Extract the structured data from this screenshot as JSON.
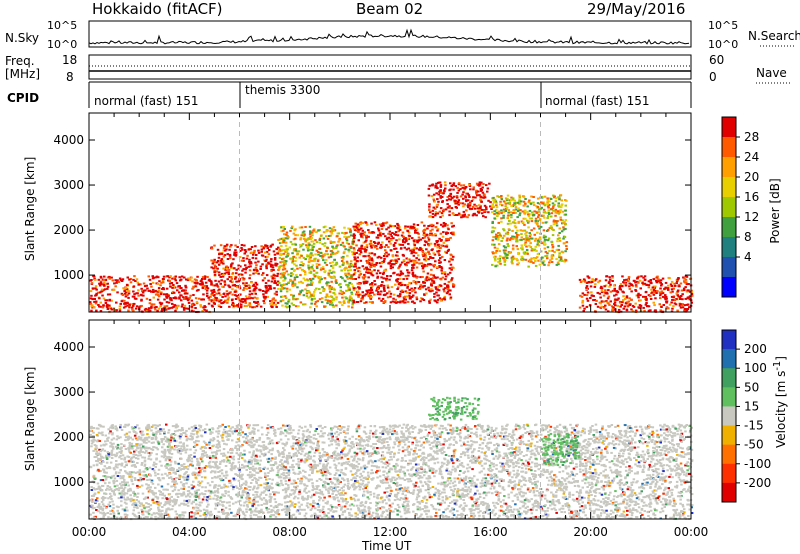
{
  "header": {
    "radar": "Hokkaido (fitACF)",
    "beam": "Beam 02",
    "date": "29/May/2016"
  },
  "noise_panel": {
    "left_label": "N.Sky",
    "left_ticks": [
      "10^5",
      "10^0"
    ],
    "right_label": "N.Search",
    "right_ticks": [
      "10^5",
      "10^0"
    ]
  },
  "freq_panel": {
    "left_label_1": "Freq.",
    "left_label_2": "[MHz]",
    "left_ticks": [
      "18",
      "8"
    ],
    "right_label": "Nave",
    "right_ticks": [
      "60",
      "0"
    ]
  },
  "cpid_panel": {
    "label": "CPID",
    "modes": [
      "normal (fast) 151",
      "themis 3300",
      "normal (fast) 151"
    ]
  },
  "chart_data": [
    {
      "type": "heatmap",
      "title": "Power",
      "ylabel": "Slant Range [km]",
      "xlabel": "",
      "y_ticks": [
        1000,
        2000,
        3000,
        4000
      ],
      "ylim": [
        180,
        4600
      ],
      "colorbar_label": "Power [dB]",
      "colorbar_ticks": [
        28,
        24,
        20,
        16,
        12,
        8,
        4
      ],
      "colorbar_colors": [
        "#e00000",
        "#ff5a00",
        "#ffa000",
        "#e8d000",
        "#a0c800",
        "#40a040",
        "#208080",
        "#2050b0",
        "#0000ff"
      ],
      "regions": [
        {
          "t0": 0.0,
          "t1": 4.8,
          "r0": 200,
          "r1": 1000,
          "level": "high"
        },
        {
          "t0": 4.8,
          "t1": 7.5,
          "r0": 300,
          "r1": 1700,
          "level": "high"
        },
        {
          "t0": 7.5,
          "t1": 10.5,
          "r0": 300,
          "r1": 2100,
          "level": "mid"
        },
        {
          "t0": 10.5,
          "t1": 14.5,
          "r0": 400,
          "r1": 2200,
          "level": "high"
        },
        {
          "t0": 13.5,
          "t1": 16.0,
          "r0": 2300,
          "r1": 3100,
          "level": "high"
        },
        {
          "t0": 16.0,
          "t1": 19.0,
          "r0": 1200,
          "r1": 2800,
          "level": "mid"
        },
        {
          "t0": 19.5,
          "t1": 24.0,
          "r0": 200,
          "r1": 1000,
          "level": "high"
        }
      ]
    },
    {
      "type": "heatmap",
      "title": "Velocity",
      "ylabel": "Slant Range [km]",
      "xlabel": "Time UT",
      "x_ticks": [
        "00:00",
        "04:00",
        "08:00",
        "12:00",
        "16:00",
        "20:00",
        "00:00"
      ],
      "xlim": [
        0,
        24
      ],
      "y_ticks": [
        1000,
        2000,
        3000,
        4000
      ],
      "ylim": [
        180,
        4600
      ],
      "colorbar_label": "Velocity [m s^-1]",
      "colorbar_ticks": [
        200,
        100,
        50,
        15,
        -15,
        -50,
        -100,
        -200
      ],
      "colorbar_colors": [
        "#2030c0",
        "#2070b0",
        "#40a060",
        "#60c060",
        "#c8c8c0",
        "#f0b000",
        "#ff7000",
        "#ff3000",
        "#e00000"
      ],
      "regions": [
        {
          "t0": 0.0,
          "t1": 24.0,
          "r0": 200,
          "r1": 2300,
          "level": "ground"
        },
        {
          "t0": 13.5,
          "t1": 15.5,
          "r0": 2400,
          "r1": 2900,
          "level": "positive"
        },
        {
          "t0": 18.0,
          "t1": 19.5,
          "r0": 1400,
          "r1": 2100,
          "level": "positive"
        }
      ]
    }
  ]
}
